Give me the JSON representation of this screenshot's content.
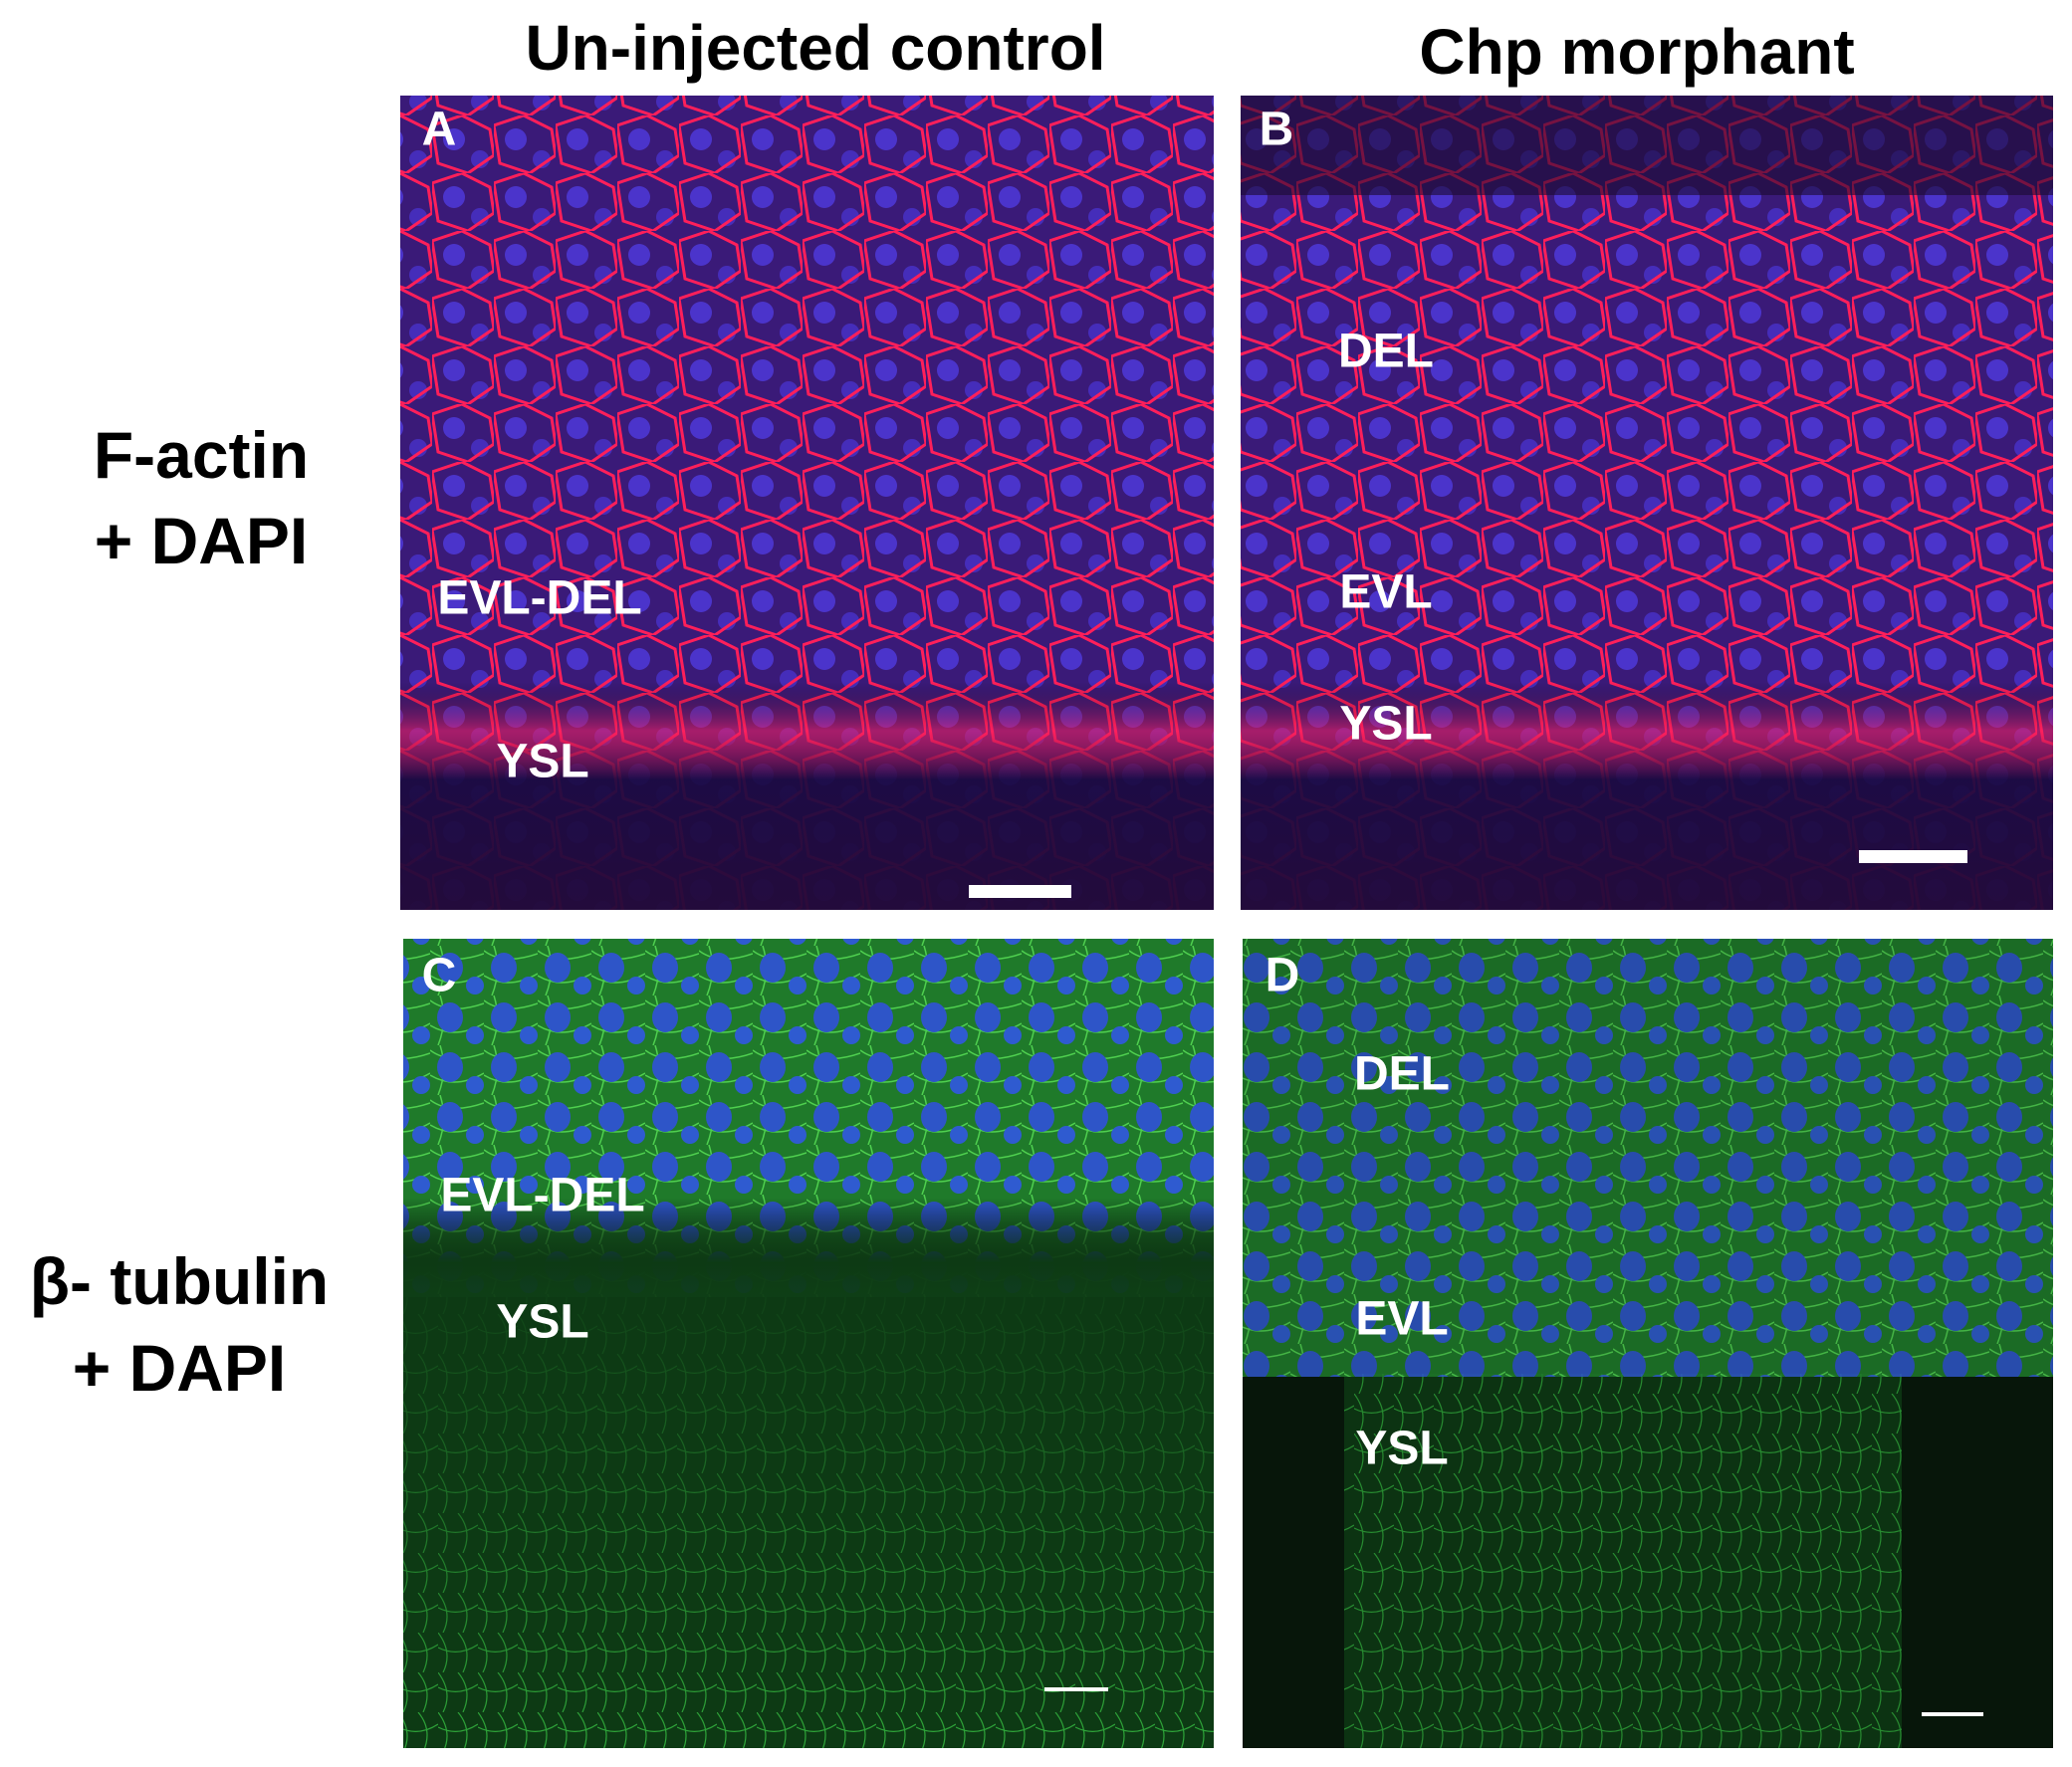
{
  "column_titles": [
    "Un-injected control",
    "Chp morphant"
  ],
  "row_labels": [
    [
      "F-actin",
      "+ DAPI"
    ],
    [
      "β- tubulin",
      "+ DAPI"
    ]
  ],
  "panels": [
    {
      "letter": "A",
      "labels": [
        "EVL-DEL",
        "YSL"
      ]
    },
    {
      "letter": "B",
      "labels": [
        "DEL",
        "EVL",
        "YSL"
      ]
    },
    {
      "letter": "C",
      "labels": [
        "EVL-DEL",
        "YSL"
      ]
    },
    {
      "letter": "D",
      "labels": [
        "DEL",
        "EVL",
        "YSL"
      ]
    }
  ]
}
